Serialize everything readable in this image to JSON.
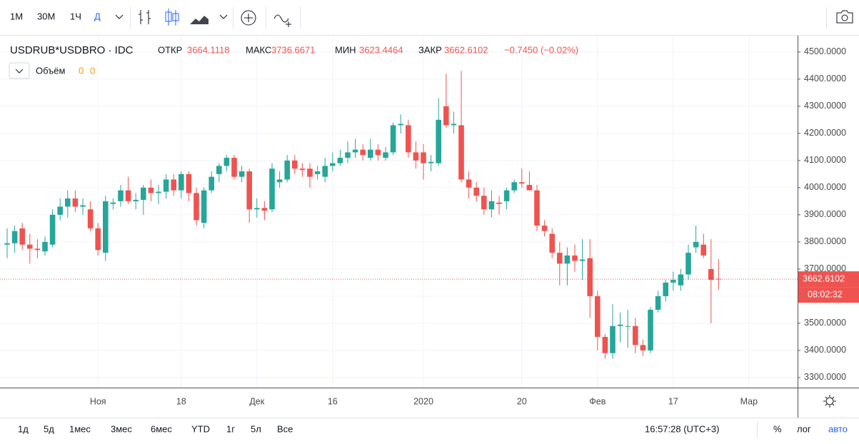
{
  "toolbar": {
    "intervals": [
      "1М",
      "30М",
      "1Ч",
      "Д"
    ]
  },
  "legend": {
    "symbol": "USDRUB*USDBRO · IDC",
    "open_label": "ОТКР",
    "high_label": "МАКС",
    "low_label": "МИН",
    "close_label": "ЗАКР",
    "change": "−0.7450 (−0.02%)",
    "volume_label": "Объём",
    "volume_values": [
      0,
      0
    ]
  },
  "countdown": "08:02:32",
  "bottom": {
    "ranges": [
      "1д",
      "5д",
      "1мес",
      "3мес",
      "6мес",
      "YTD",
      "1г",
      "5л",
      "Все"
    ],
    "clock": "16:57:28 (UTC+3)",
    "options": [
      "%",
      "лог",
      "авто"
    ]
  },
  "chart_data": {
    "type": "candlestick",
    "up_color": "#26a69a",
    "down_color": "#ef5350",
    "grid": true,
    "categories": [
      null,
      null,
      null,
      null,
      null,
      null,
      null,
      null,
      null,
      null,
      null,
      null,
      "Ноя",
      null,
      null,
      null,
      null,
      null,
      null,
      null,
      null,
      null,
      null,
      "18",
      null,
      null,
      null,
      null,
      null,
      null,
      null,
      null,
      null,
      "Дек",
      null,
      null,
      null,
      null,
      null,
      null,
      null,
      null,
      null,
      "16",
      null,
      null,
      null,
      null,
      null,
      null,
      null,
      null,
      null,
      null,
      null,
      "2020",
      null,
      null,
      null,
      null,
      null,
      null,
      null,
      null,
      null,
      null,
      null,
      null,
      "20",
      null,
      null,
      null,
      null,
      null,
      null,
      null,
      null,
      null,
      "Фев",
      null,
      null,
      null,
      null,
      null,
      null,
      null,
      null,
      null,
      "17",
      null,
      null,
      null,
      null,
      null,
      null,
      null,
      null,
      null,
      "Мар"
    ],
    "open": [
      3790,
      3795,
      3850,
      3790,
      3775,
      3765,
      3790,
      3900,
      3930,
      3960,
      3930,
      3920,
      3850,
      3760,
      3940,
      3950,
      3990,
      3950,
      3955,
      4000,
      3980,
      3985,
      4030,
      3990,
      4050,
      3980,
      3870,
      3990,
      4050,
      4080,
      4110,
      4040,
      4060,
      3920,
      3925,
      3920,
      4020,
      4030,
      4100,
      4070,
      4070,
      4050,
      4040,
      4080,
      4090,
      4110,
      4130,
      4140,
      4110,
      4140,
      4110,
      4130,
      4230,
      4230,
      4130,
      4130,
      4090,
      4090,
      4300,
      4230,
      4230,
      4030,
      4000,
      3970,
      3920,
      3945,
      3950,
      3990,
      4020,
      4010,
      3990,
      3860,
      3830,
      3760,
      3720,
      3750,
      3730,
      3740,
      3600,
      3450,
      3390,
      3490,
      3490,
      3490,
      3420,
      3400,
      3550,
      3600,
      3650,
      3640,
      3680,
      3780,
      3790,
      3700,
      3664.1118,
      null,
      null,
      null,
      null
    ],
    "high": [
      3850,
      3860,
      3870,
      3830,
      3810,
      3820,
      3920,
      3960,
      3990,
      3990,
      3960,
      3950,
      3870,
      3970,
      3960,
      4010,
      4040,
      3980,
      4010,
      4030,
      4010,
      4050,
      4050,
      4060,
      4060,
      4000,
      4000,
      4060,
      4090,
      4120,
      4120,
      4080,
      4070,
      3960,
      3950,
      4090,
      4060,
      4120,
      4120,
      4090,
      4090,
      4080,
      4110,
      4130,
      4140,
      4170,
      4180,
      4160,
      4180,
      4160,
      4150,
      4240,
      4270,
      4250,
      4170,
      4160,
      4120,
      4330,
      4420,
      4280,
      4430,
      4060,
      4020,
      4000,
      3990,
      3970,
      4000,
      4030,
      4070,
      4060,
      4010,
      3880,
      3850,
      3800,
      3780,
      3790,
      3810,
      3810,
      3620,
      3460,
      3570,
      3540,
      3550,
      3520,
      3440,
      3560,
      3620,
      3660,
      3690,
      3700,
      3790,
      3860,
      3830,
      3810,
      3736.6671,
      null,
      null,
      null,
      null
    ],
    "low": [
      3740,
      3760,
      3770,
      3720,
      3740,
      3750,
      3780,
      3880,
      3890,
      3910,
      3900,
      3840,
      3750,
      3730,
      3920,
      3930,
      3940,
      3920,
      3900,
      3950,
      3940,
      3960,
      3970,
      3960,
      3950,
      3860,
      3850,
      3980,
      4020,
      4060,
      4030,
      4020,
      3870,
      3890,
      3880,
      3910,
      4000,
      4020,
      4050,
      4040,
      4000,
      4030,
      4020,
      4060,
      4080,
      4090,
      4110,
      4100,
      4100,
      4100,
      4100,
      4120,
      4200,
      4110,
      4070,
      4030,
      4060,
      4080,
      4220,
      4200,
      4020,
      3960,
      3950,
      3900,
      3890,
      3900,
      3920,
      3980,
      4000,
      3990,
      3840,
      3820,
      3740,
      3640,
      3640,
      3690,
      3660,
      3520,
      3400,
      3370,
      3370,
      3430,
      3410,
      3390,
      3380,
      3390,
      3540,
      3580,
      3620,
      3620,
      3660,
      3760,
      3740,
      3500,
      3623.4464,
      null,
      null,
      null,
      null
    ],
    "close": [
      3795,
      3840,
      3790,
      3775,
      3770,
      3800,
      3900,
      3930,
      3960,
      3930,
      3935,
      3850,
      3770,
      3950,
      3945,
      3990,
      3950,
      3955,
      4000,
      3980,
      3985,
      4030,
      3990,
      4050,
      3980,
      3880,
      3990,
      4040,
      4080,
      4110,
      4040,
      4060,
      3920,
      3925,
      3915,
      4070,
      4030,
      4100,
      4070,
      4065,
      4040,
      4060,
      4080,
      4090,
      4110,
      4130,
      4140,
      4120,
      4140,
      4120,
      4130,
      4230,
      4235,
      4130,
      4100,
      4090,
      4095,
      4250,
      4230,
      4235,
      4030,
      4000,
      3970,
      3920,
      3950,
      3940,
      3990,
      4020,
      4015,
      3990,
      3860,
      3840,
      3760,
      3720,
      3750,
      3730,
      3735,
      3600,
      3450,
      3390,
      3490,
      3495,
      3490,
      3420,
      3400,
      3550,
      3600,
      3650,
      3660,
      3680,
      3760,
      3800,
      3750,
      3660,
      3662.6102,
      null,
      null,
      null,
      null
    ],
    "ylim": [
      3263,
      4560
    ],
    "yticks": [
      {
        "value": 3300,
        "label": "3300.0000"
      },
      {
        "value": 3400,
        "label": "3400.0000"
      },
      {
        "value": 3500,
        "label": "3500.0000"
      },
      {
        "value": 3600,
        "label": "3600.0000"
      },
      {
        "value": 3700,
        "label": "3700.0000"
      },
      {
        "value": 3800,
        "label": "3800.0000"
      },
      {
        "value": 3900,
        "label": "3900.0000"
      },
      {
        "value": 4000,
        "label": "4000.0000"
      },
      {
        "value": 4100,
        "label": "4100.0000"
      },
      {
        "value": 4200,
        "label": "4200.0000"
      },
      {
        "value": 4300,
        "label": "4300.0000"
      },
      {
        "value": 4400,
        "label": "4400.0000"
      },
      {
        "value": 4500,
        "label": "4500.0000"
      }
    ]
  }
}
